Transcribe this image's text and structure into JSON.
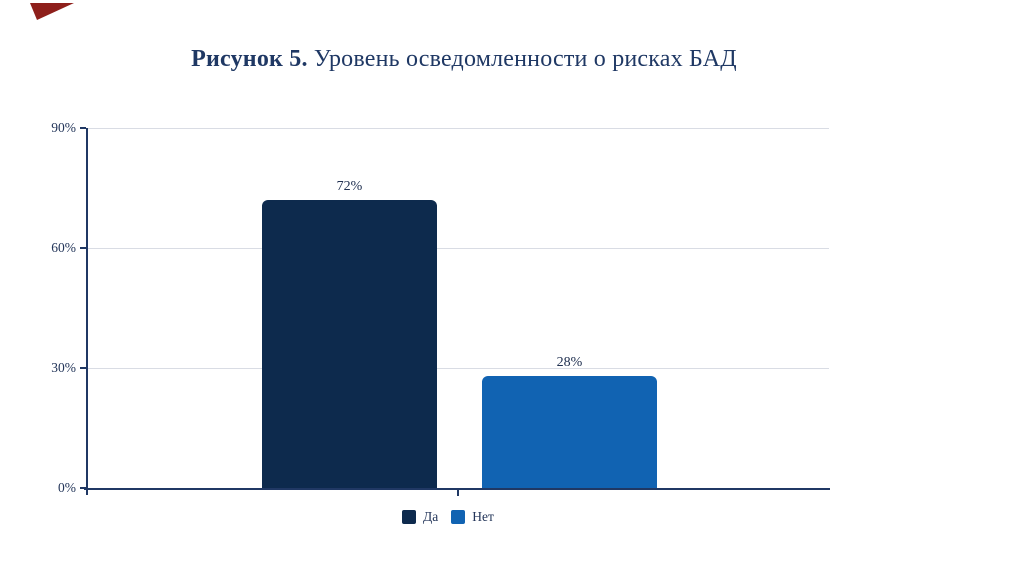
{
  "decoration": {
    "triangle_color": "#8E1F1B"
  },
  "title": {
    "prefix": "Рисунок 5.",
    "rest": " Уровень осведомленности о рисках БАД",
    "color": "#1F3864"
  },
  "chart_data": {
    "type": "bar",
    "title": "Рисунок 5. Уровень осведомленности о рисках БАД",
    "categories": [
      "Да",
      "Нет"
    ],
    "values": [
      72,
      28
    ],
    "value_labels": [
      "72%",
      "28%"
    ],
    "series_colors": [
      "#0D2A4D",
      "#1163B2"
    ],
    "xlabel": "",
    "ylabel": "",
    "ylim": [
      0,
      90
    ],
    "ytick_values": [
      0,
      30,
      60,
      90
    ],
    "ytick_labels": [
      "0%",
      "30%",
      "60%",
      "90%"
    ],
    "grid": true,
    "legend_position": "bottom"
  },
  "axis": {
    "labels_desc": [
      "90%",
      "60%",
      "30%",
      "0%"
    ],
    "line_color": "#203864",
    "grid_color": "#D9DCE4",
    "label_color": "#24365A"
  },
  "legend": {
    "items": [
      {
        "label": "Да",
        "color": "#0D2A4D"
      },
      {
        "label": "Нет",
        "color": "#1163B2"
      }
    ]
  }
}
